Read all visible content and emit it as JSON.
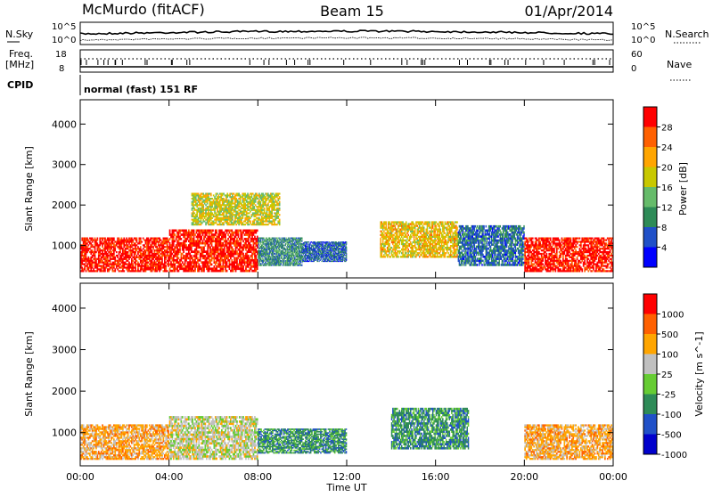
{
  "header": {
    "station": "McMurdo (fitACF)",
    "beam": "Beam 15",
    "date": "01/Apr/2014"
  },
  "noise_panel": {
    "left_label": "N.Sky",
    "right_label": "N.Search",
    "left_ticks": [
      "10^5",
      "10^0"
    ],
    "right_ticks": [
      "10^5",
      "10^0"
    ]
  },
  "freq_panel": {
    "left_label_1": "Freq.",
    "left_label_2": "[MHz]",
    "right_label": "Nave",
    "left_ticks": [
      "18",
      "8"
    ],
    "right_ticks": [
      "60",
      "0"
    ]
  },
  "cpid": {
    "label": "CPID",
    "text": "normal (fast) 151 RF"
  },
  "x_axis": {
    "label": "Time UT",
    "ticks": [
      "00:00",
      "04:00",
      "08:00",
      "12:00",
      "16:00",
      "20:00",
      "00:00"
    ]
  },
  "chart_data": [
    {
      "type": "heatmap",
      "title": "",
      "xlabel": "Time UT",
      "ylabel": "Slant Range [km]",
      "x_ticks": [
        "00:00",
        "04:00",
        "08:00",
        "12:00",
        "16:00",
        "20:00",
        "00:00"
      ],
      "y_ticks": [
        1000,
        2000,
        3000,
        4000
      ],
      "ylim": [
        200,
        4600
      ],
      "xlim_hours": [
        0,
        24
      ],
      "colorbar": {
        "label": "Power [dB]",
        "ticks": [
          28,
          24,
          20,
          16,
          12,
          8,
          4
        ],
        "range": [
          0,
          32
        ],
        "colors": [
          "#0000ff",
          "#2050c8",
          "#2e8b57",
          "#66bb6a",
          "#c8c800",
          "#ffa500",
          "#ff6000",
          "#ff0000"
        ]
      },
      "regions": [
        {
          "t0": 0,
          "t1": 4,
          "r0": 350,
          "r1": 1200,
          "value": 30
        },
        {
          "t0": 4,
          "t1": 8,
          "r0": 350,
          "r1": 1400,
          "value": 30
        },
        {
          "t0": 8,
          "t1": 10,
          "r0": 500,
          "r1": 1200,
          "value": 10
        },
        {
          "t0": 10,
          "t1": 12,
          "r0": 600,
          "r1": 1100,
          "value": 7
        },
        {
          "t0": 13.5,
          "t1": 17,
          "r0": 700,
          "r1": 1600,
          "value": 20
        },
        {
          "t0": 17,
          "t1": 20,
          "r0": 500,
          "r1": 1500,
          "value": 8
        },
        {
          "t0": 20,
          "t1": 24,
          "r0": 350,
          "r1": 1200,
          "value": 30
        },
        {
          "t0": 5,
          "t1": 9,
          "r0": 1500,
          "r1": 2300,
          "value": 18
        }
      ]
    },
    {
      "type": "heatmap",
      "title": "",
      "xlabel": "Time UT",
      "ylabel": "Slant Range [km]",
      "x_ticks": [
        "00:00",
        "04:00",
        "08:00",
        "12:00",
        "16:00",
        "20:00",
        "00:00"
      ],
      "y_ticks": [
        1000,
        2000,
        3000,
        4000
      ],
      "ylim": [
        200,
        4600
      ],
      "xlim_hours": [
        0,
        24
      ],
      "colorbar": {
        "label": "Velocity [m s^-1]",
        "ticks": [
          "1000",
          "500",
          "100",
          "25",
          "-25",
          "-100",
          "-500",
          "-1000"
        ],
        "colors": [
          "#0000cc",
          "#2050c8",
          "#2e8b57",
          "#66cc33",
          "#c0c0c0",
          "#ffa500",
          "#ff6000",
          "#ff0000"
        ]
      },
      "regions": [
        {
          "t0": 0,
          "t1": 4,
          "r0": 350,
          "r1": 1200,
          "value": "100"
        },
        {
          "t0": 4,
          "t1": 8,
          "r0": 350,
          "r1": 1400,
          "value": "25"
        },
        {
          "t0": 8,
          "t1": 12,
          "r0": 500,
          "r1": 1100,
          "value": "-100"
        },
        {
          "t0": 14,
          "t1": 17.5,
          "r0": 600,
          "r1": 1600,
          "value": "-100"
        },
        {
          "t0": 20,
          "t1": 24,
          "r0": 350,
          "r1": 1200,
          "value": "100"
        }
      ]
    }
  ]
}
